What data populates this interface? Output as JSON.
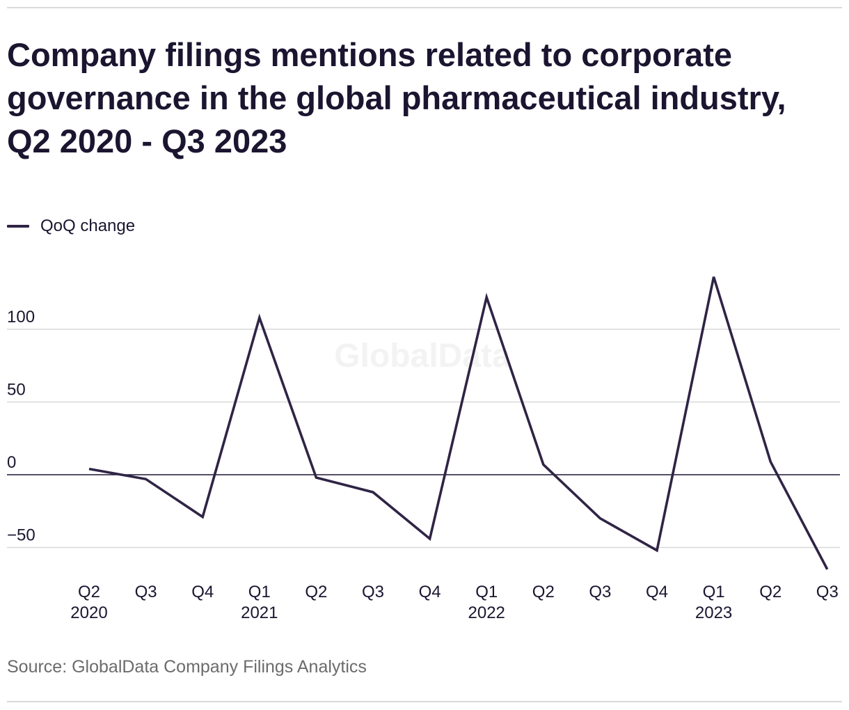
{
  "title": "Company filings mentions related to corporate governance in the global pharmaceutical industry, Q2 2020 - Q3 2023",
  "legend": {
    "label": "QoQ change"
  },
  "source": "Source: GlobalData Company Filings Analytics",
  "watermark": "GlobalData",
  "colors": {
    "series": "#2f2445",
    "grid": "#d9d9d9",
    "zero_line": "#1b1530",
    "text": "#1b1530",
    "source_text": "#6b6b6b"
  },
  "chart_data": {
    "type": "line",
    "title": "Company filings mentions related to corporate governance in the global pharmaceutical industry, Q2 2020 - Q3 2023",
    "xlabel": "",
    "ylabel": "",
    "categories": [
      "Q2",
      "Q3",
      "Q4",
      "Q1",
      "Q2",
      "Q3",
      "Q4",
      "Q1",
      "Q2",
      "Q3",
      "Q4",
      "Q1",
      "Q2",
      "Q3"
    ],
    "year_labels": [
      "2020",
      "",
      "",
      "2021",
      "",
      "",
      "",
      "2022",
      "",
      "",
      "",
      "2023",
      "",
      ""
    ],
    "series": [
      {
        "name": "QoQ change",
        "values": [
          4,
          -3,
          -29,
          108,
          -2,
          -12,
          -44,
          122,
          7,
          -30,
          -52,
          136,
          9,
          -65
        ]
      }
    ],
    "yticks": [
      100,
      50,
      0,
      -50
    ],
    "ytick_labels": [
      "100",
      "50",
      "0",
      "−50"
    ],
    "ylim": [
      -70,
      140
    ],
    "grid": true,
    "legend_position": "top-left"
  }
}
